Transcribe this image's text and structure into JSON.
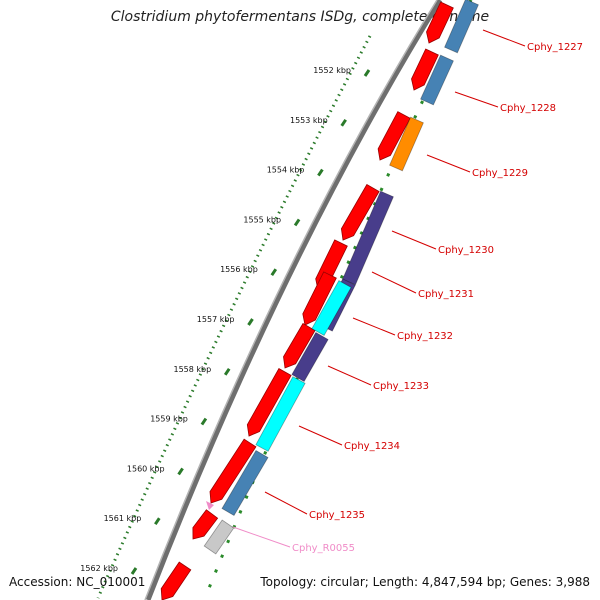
{
  "title": "Clostridium phytofermentans ISDg, complete genome",
  "footer": {
    "accession": "Accession: NC_010001",
    "topology": "Topology: circular; Length: 4,847,594 bp; Genes: 3,988"
  },
  "colors": {
    "backbone": "#808080",
    "cds_forward": "#ff0000",
    "ruler_dots": "#2a7a2a",
    "label": "#d40000",
    "rna_label": "#f08cc8"
  },
  "ruler_labels": [
    "1552 kbp",
    "1553 kbp",
    "1554 kbp",
    "1555 kbp",
    "1556 kbp",
    "1557 kbp",
    "1558 kbp",
    "1559 kbp",
    "1560 kbp",
    "1561 kbp",
    "1562 kbp"
  ],
  "genes": [
    {
      "name": "Cphy_1227",
      "color": "#4682b4"
    },
    {
      "name": "Cphy_1228",
      "color": "#4682b4"
    },
    {
      "name": "Cphy_1229",
      "color": "#ff8c00"
    },
    {
      "name": "Cphy_1230",
      "color": "#483d8b"
    },
    {
      "name": "Cphy_1231",
      "color": "#483d8b"
    },
    {
      "name": "Cphy_1232",
      "color": "#00ffff"
    },
    {
      "name": "Cphy_1233",
      "color": "#483d8b"
    },
    {
      "name": "Cphy_1234",
      "color": "#00ffff"
    },
    {
      "name": "Cphy_1235",
      "color": "#4682b4"
    },
    {
      "name": "Cphy_R0055",
      "color": "#c8c8c8"
    }
  ]
}
